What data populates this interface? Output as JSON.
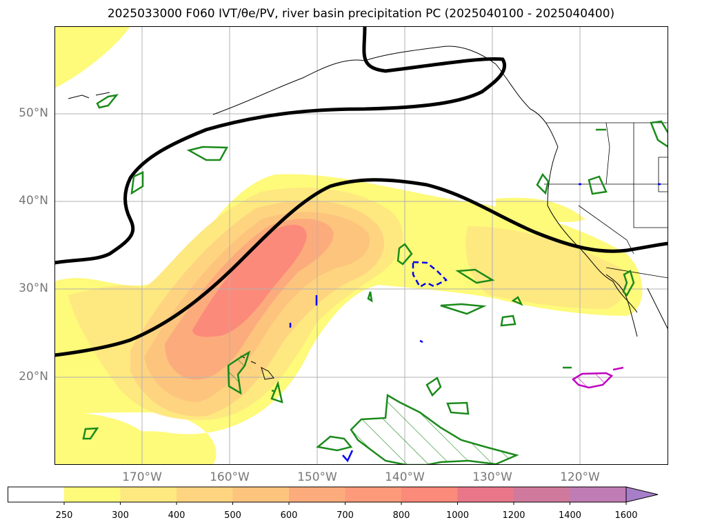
{
  "title": "2025033000 F060 IVT/θe/PV, river basin precipitation PC (2025040100 - 2025040400)",
  "lat_labels": [
    "50°N",
    "40°N",
    "30°N",
    "20°N"
  ],
  "lon_labels": [
    "170°W",
    "160°W",
    "150°W",
    "140°W",
    "130°W",
    "120°W"
  ],
  "colorbar": {
    "ticks": [
      "250",
      "300",
      "400",
      "500",
      "600",
      "700",
      "800",
      "1000",
      "1200",
      "1400",
      "1600"
    ],
    "colors": [
      "#ffffff",
      "#fefa7a",
      "#fee880",
      "#fed480",
      "#fdc47e",
      "#fcac7c",
      "#fc9a7a",
      "#fb8a7a",
      "#e8778a",
      "#cf7a9c",
      "#c07cb5",
      "#a77ec8"
    ],
    "extend": "max"
  },
  "colors": {
    "ivt_250": "#fefa7a",
    "ivt_300": "#fee880",
    "ivt_400": "#fed480",
    "ivt_500": "#fdc47e",
    "ivt_600": "#fcac7c",
    "ivt_800": "#fc8a7a",
    "pv_contour": "#000000",
    "precip_positive": "#1a8a1a",
    "precip_negative": "#0000ee",
    "precip_extreme": "#c000c0",
    "gridline": "#b0b0b0"
  }
}
